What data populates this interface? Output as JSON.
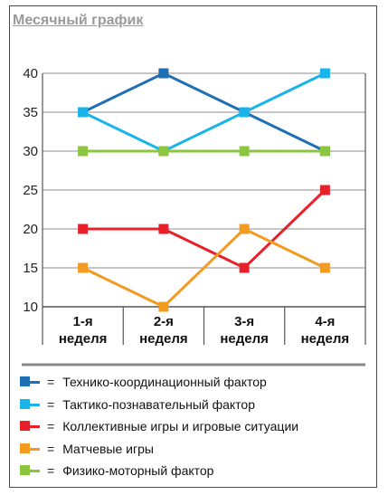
{
  "chart_data": {
    "type": "line",
    "title": "Месячный график",
    "xlabel": "",
    "ylabel": "",
    "categories": [
      "1-я\nнеделя",
      "2-я\nнеделя",
      "3-я\nнеделя",
      "4-я\nнеделя"
    ],
    "yticks": [
      10,
      15,
      20,
      25,
      30,
      35,
      40
    ],
    "ylim": [
      10,
      40
    ],
    "grid": true,
    "legend_position": "bottom",
    "legend_separator": "=",
    "series": [
      {
        "name": "Технико-координационный фактор",
        "color": "#1f6fb5",
        "values": [
          35,
          40,
          35,
          30
        ]
      },
      {
        "name": "Тактико-познавательный фактор",
        "color": "#19b5ea",
        "values": [
          35,
          30,
          35,
          40
        ]
      },
      {
        "name": "Коллективные игры и игровые ситуации",
        "color": "#e8202a",
        "values": [
          20,
          20,
          15,
          25
        ]
      },
      {
        "name": "Матчевые игры",
        "color": "#f39a20",
        "values": [
          15,
          10,
          20,
          15
        ]
      },
      {
        "name": "Физико-моторный фактор",
        "color": "#8cc63f",
        "values": [
          30,
          30,
          30,
          30
        ]
      }
    ]
  }
}
